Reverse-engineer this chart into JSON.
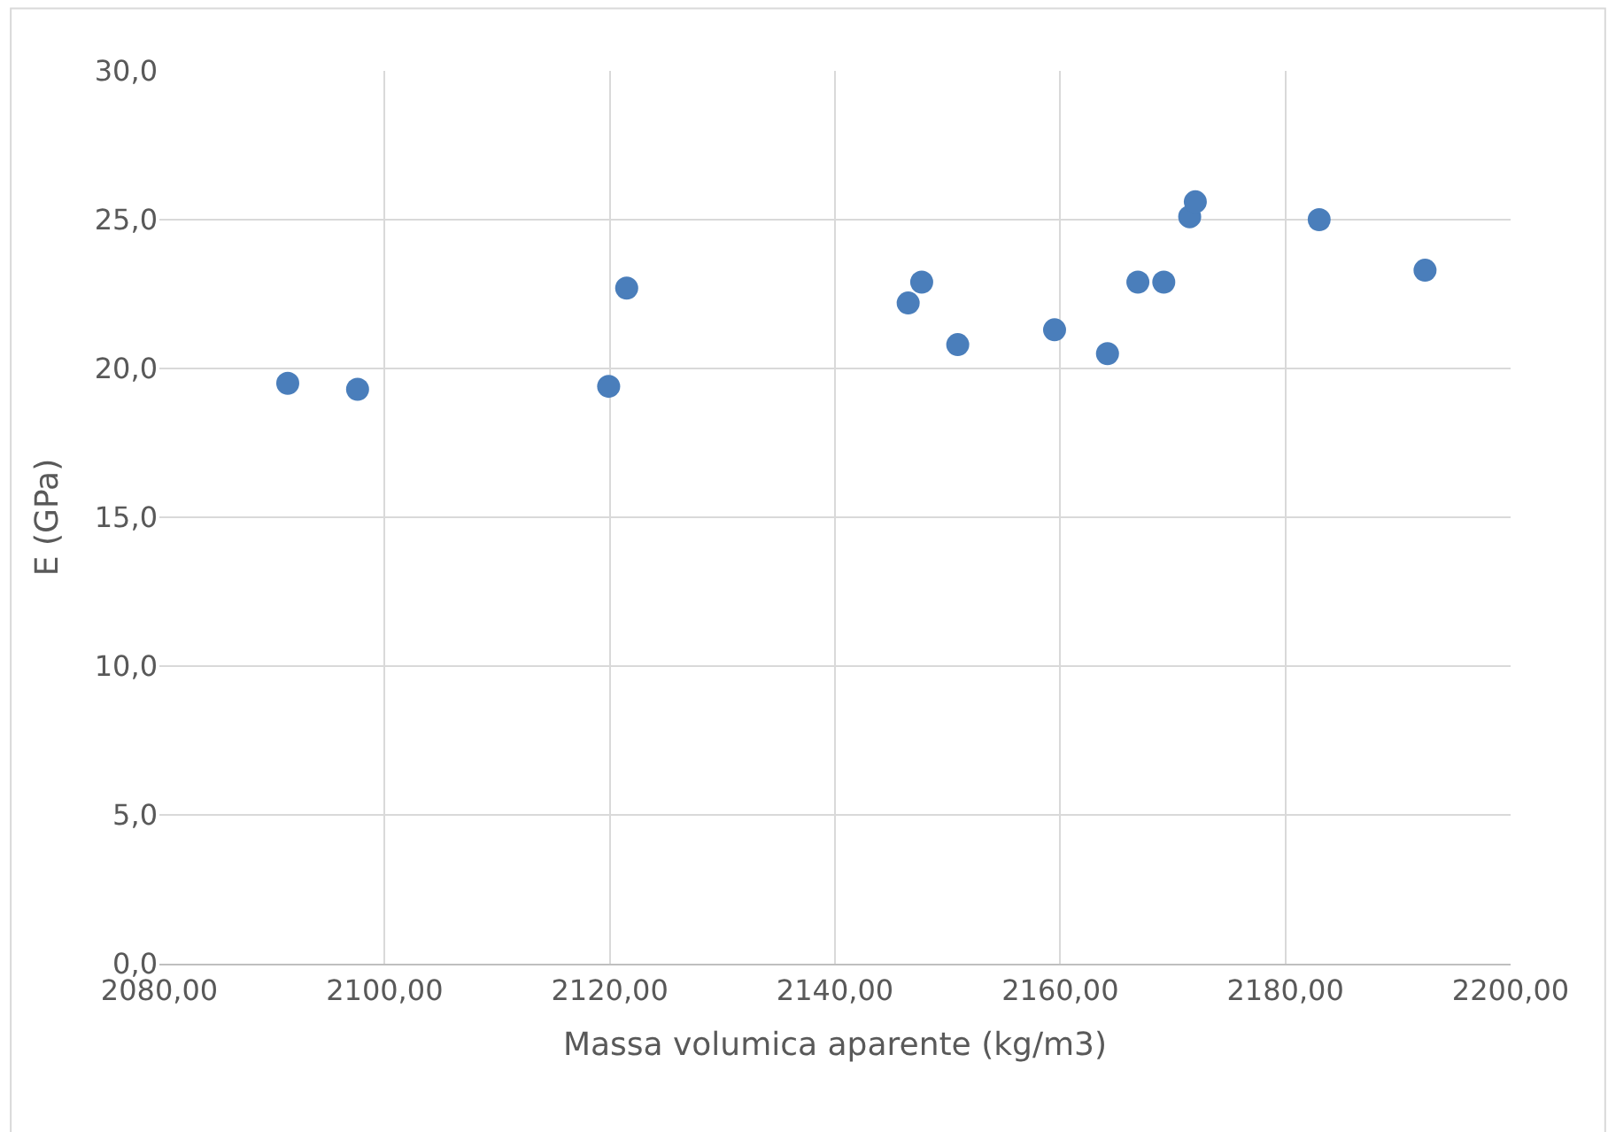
{
  "chart_data": {
    "type": "scatter",
    "xlabel": "Massa volumica aparente (kg/m3)",
    "ylabel": "E (GPa)",
    "x": [
      2091.4,
      2097.6,
      2119.9,
      2121.5,
      2146.5,
      2147.7,
      2150.9,
      2159.5,
      2164.2,
      2166.9,
      2169.2,
      2171.5,
      2172.0,
      2183.0,
      2192.4
    ],
    "series": [
      {
        "color": "#4a7ebb",
        "values": [
          19.5,
          19.3,
          19.4,
          22.7,
          22.2,
          22.9,
          20.8,
          21.3,
          20.5,
          22.9,
          22.9,
          25.1,
          25.6,
          25.0,
          23.3
        ]
      }
    ],
    "xlim": [
      2080,
      2200
    ],
    "ylim": [
      0,
      30
    ],
    "xticks": [
      {
        "value": 2080,
        "label": "2080,00"
      },
      {
        "value": 2100,
        "label": "2100,00"
      },
      {
        "value": 2120,
        "label": "2120,00"
      },
      {
        "value": 2140,
        "label": "2140,00"
      },
      {
        "value": 2160,
        "label": "2160,00"
      },
      {
        "value": 2180,
        "label": "2180,00"
      },
      {
        "value": 2200,
        "label": "2200,00"
      }
    ],
    "yticks": [
      {
        "value": 0,
        "label": "0,0"
      },
      {
        "value": 5,
        "label": "5,0"
      },
      {
        "value": 10,
        "label": "10,0"
      },
      {
        "value": 15,
        "label": "15,0"
      },
      {
        "value": 20,
        "label": "20,0"
      },
      {
        "value": 25,
        "label": "25,0"
      },
      {
        "value": 30,
        "label": "30,0"
      }
    ],
    "grid": true,
    "marker": "circle"
  }
}
